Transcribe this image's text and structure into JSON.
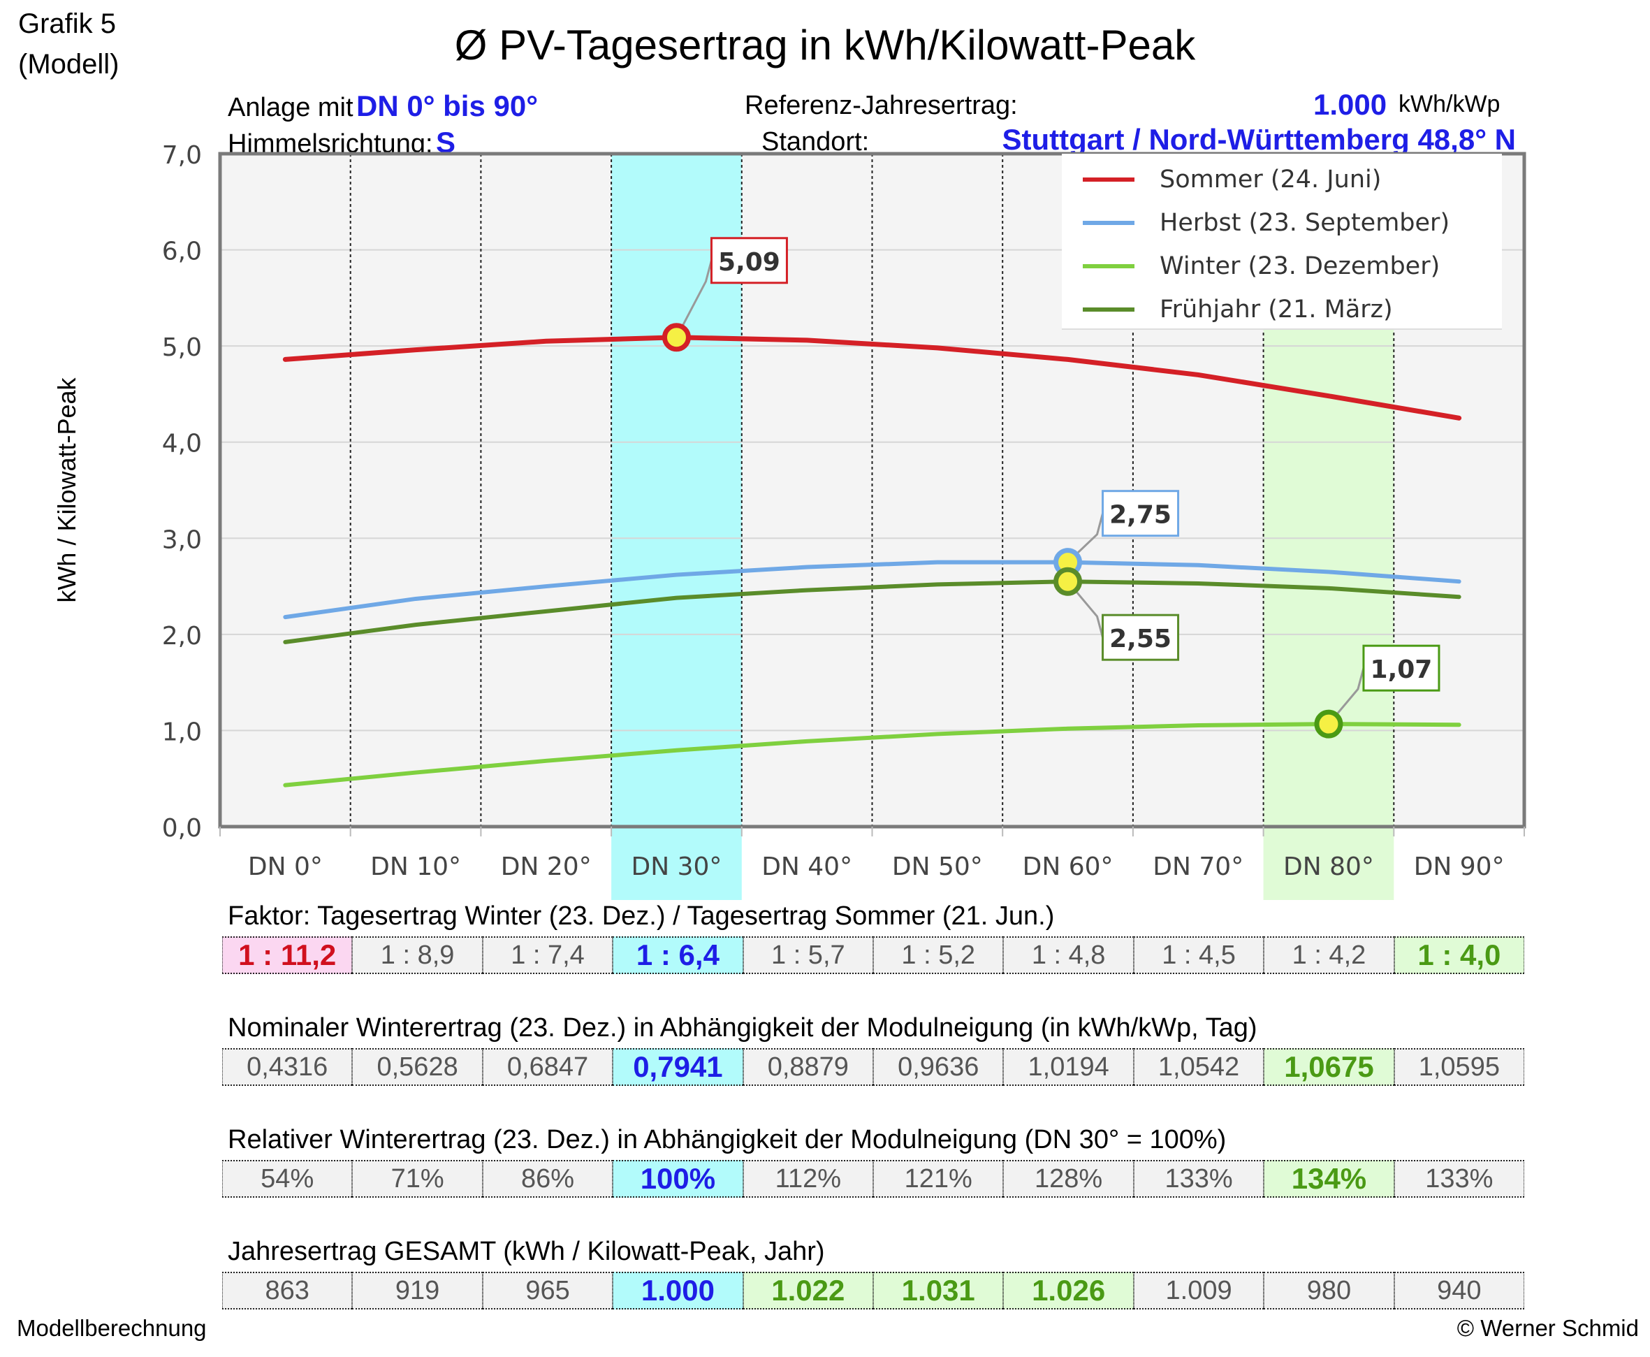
{
  "header": {
    "grafik": "Grafik 5",
    "modell": "(Modell)",
    "title": "Ø PV-Tagesertrag in kWh/Kilowatt-Peak",
    "anlage_label": "Anlage mit",
    "anlage_value": "DN 0° bis 90°",
    "himmel_label": "Himmelsrichtung:",
    "himmel_value": "S",
    "referenz_label": "Referenz-Jahresertrag:",
    "referenz_value": "1.000",
    "referenz_unit": "kWh/kWp",
    "standort_label": "Standort:",
    "standort_value": "Stuttgart / Nord-Württemberg 48,8° N"
  },
  "chart_data": {
    "type": "line",
    "ylabel": "kWh / Kilowatt-Peak",
    "ylim": [
      0,
      7
    ],
    "yticks": [
      "0,0",
      "1,0",
      "2,0",
      "3,0",
      "4,0",
      "5,0",
      "6,0",
      "7,0"
    ],
    "categories": [
      "DN 0°",
      "DN 10°",
      "DN 20°",
      "DN 30°",
      "DN 40°",
      "DN 50°",
      "DN 60°",
      "DN 70°",
      "DN 80°",
      "DN 90°"
    ],
    "highlight_columns": [
      {
        "index": 3,
        "color": "#b2fbfb"
      },
      {
        "index": 8,
        "color": "#e0fbd6"
      }
    ],
    "grid": true,
    "legend_position": "top-right",
    "series": [
      {
        "name": "Sommer (24. Juni)",
        "color": "#d42026",
        "values": [
          4.86,
          4.96,
          5.05,
          5.09,
          5.06,
          4.98,
          4.86,
          4.7,
          4.48,
          4.25
        ]
      },
      {
        "name": "Herbst (23. September)",
        "color": "#6fa8e6",
        "values": [
          2.18,
          2.37,
          2.5,
          2.62,
          2.7,
          2.75,
          2.75,
          2.72,
          2.65,
          2.55
        ]
      },
      {
        "name": "Winter (23. Dezember)",
        "color": "#7fd03f",
        "values": [
          0.4316,
          0.5628,
          0.6847,
          0.7941,
          0.8879,
          0.9636,
          1.0194,
          1.0542,
          1.0675,
          1.0595
        ]
      },
      {
        "name": "Frühjahr (21. März)",
        "color": "#5a8c2a",
        "values": [
          1.92,
          2.1,
          2.24,
          2.38,
          2.46,
          2.52,
          2.55,
          2.53,
          2.48,
          2.39
        ]
      }
    ],
    "annotations": [
      {
        "text": "5,09",
        "series": 0,
        "index": 3,
        "border": "#d42026"
      },
      {
        "text": "2,75",
        "series": 1,
        "index": 6,
        "border": "#6fa8e6"
      },
      {
        "text": "2,55",
        "series": 3,
        "index": 6,
        "border": "#5a8c2a"
      },
      {
        "text": "1,07",
        "series": 2,
        "index": 8,
        "border": "#4a9a14"
      }
    ]
  },
  "tables": [
    {
      "title": "Faktor:  Tagesertrag Winter (23. Dez.) / Tagesertrag Sommer (21. Jun.)",
      "cells": [
        "1 : 11,2",
        "1 : 8,9",
        "1 : 7,4",
        "1 : 6,4",
        "1 : 5,7",
        "1 : 5,2",
        "1 : 4,8",
        "1 : 4,5",
        "1 : 4,2",
        "1 : 4,0"
      ],
      "highlights": {
        "0": "hl-red",
        "3": "hl-cyan",
        "9": "hl-green"
      }
    },
    {
      "title": "Nominaler Winterertrag (23. Dez.) in Abhängigkeit der Modulneigung (in kWh/kWp, Tag)",
      "cells": [
        "0,4316",
        "0,5628",
        "0,6847",
        "0,7941",
        "0,8879",
        "0,9636",
        "1,0194",
        "1,0542",
        "1,0675",
        "1,0595"
      ],
      "highlights": {
        "3": "hl-cyan",
        "8": "hl-green"
      }
    },
    {
      "title": "Relativer Winterertrag (23. Dez.) in Abhängigkeit der Modulneigung (DN 30° = 100%)",
      "cells": [
        "54%",
        "71%",
        "86%",
        "100%",
        "112%",
        "121%",
        "128%",
        "133%",
        "134%",
        "133%"
      ],
      "highlights": {
        "3": "hl-cyan",
        "8": "hl-green"
      }
    },
    {
      "title": "Jahresertrag GESAMT  (kWh / Kilowatt-Peak, Jahr)",
      "cells": [
        "863",
        "919",
        "965",
        "1.000",
        "1.022",
        "1.031",
        "1.026",
        "1.009",
        "980",
        "940"
      ],
      "highlights": {
        "3": "hl-cyan",
        "4": "hl-green",
        "5": "hl-green",
        "6": "hl-green"
      }
    }
  ],
  "footer": {
    "left": "Modellberechnung",
    "right": "© Werner Schmid"
  }
}
